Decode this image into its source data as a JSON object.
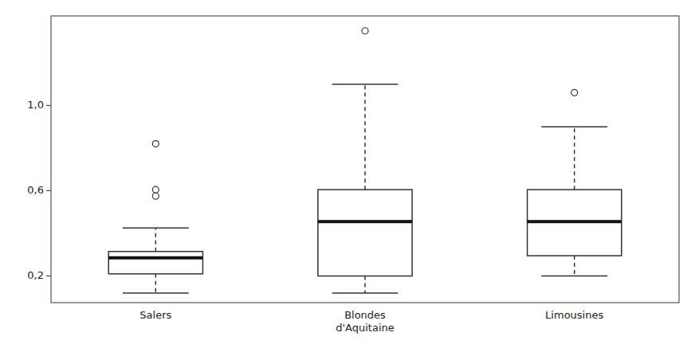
{
  "chart_data": {
    "type": "box",
    "categories": [
      "Salers",
      "Blondes\nd'Aquitaine",
      "Limousines"
    ],
    "boxes": [
      {
        "q1": 0.21,
        "median": 0.285,
        "q3": 0.315,
        "whisker_low": 0.12,
        "whisker_high": 0.425,
        "outliers": [
          0.575,
          0.605,
          0.82
        ]
      },
      {
        "q1": 0.2,
        "median": 0.455,
        "q3": 0.605,
        "whisker_low": 0.12,
        "whisker_high": 1.1,
        "outliers": [
          1.35
        ]
      },
      {
        "q1": 0.295,
        "median": 0.455,
        "q3": 0.605,
        "whisker_low": 0.2,
        "whisker_high": 0.9,
        "outliers": [
          1.06
        ]
      }
    ],
    "ylim": [
      0.075,
      1.42
    ],
    "yticks": [
      {
        "value": 0.2,
        "label": "0,2"
      },
      {
        "value": 0.6,
        "label": "0,6"
      },
      {
        "value": 1.0,
        "label": "1,0"
      }
    ],
    "grid": false,
    "line_style": "dashed"
  }
}
